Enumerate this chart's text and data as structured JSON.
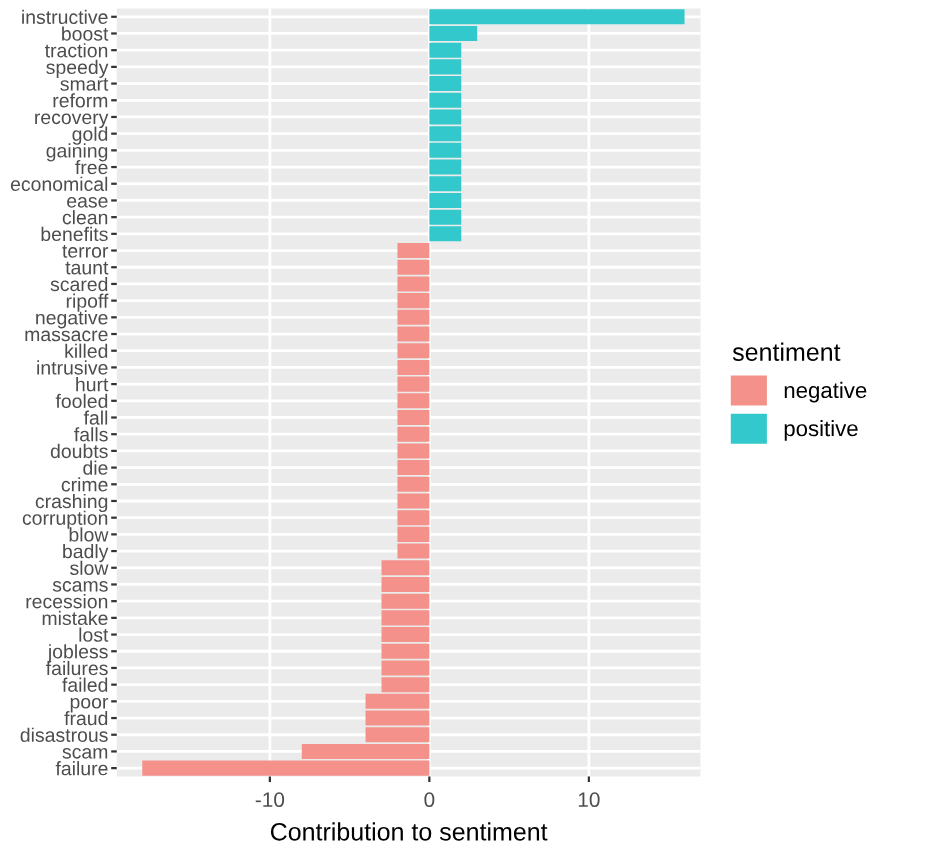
{
  "chart_data": {
    "type": "bar",
    "orientation": "horizontal",
    "xlabel": "Contribution to sentiment",
    "legend_title": "sentiment",
    "legend": "right",
    "grid": true,
    "categories": [
      "instructive",
      "boost",
      "traction",
      "speedy",
      "smart",
      "reform",
      "recovery",
      "gold",
      "gaining",
      "free",
      "economical",
      "ease",
      "clean",
      "benefits",
      "terror",
      "taunt",
      "scared",
      "ripoff",
      "negative",
      "massacre",
      "killed",
      "intrusive",
      "hurt",
      "fooled",
      "fall",
      "falls",
      "doubts",
      "die",
      "crime",
      "crashing",
      "corruption",
      "blow",
      "badly",
      "slow",
      "scams",
      "recession",
      "mistake",
      "lost",
      "jobless",
      "failures",
      "failed",
      "poor",
      "fraud",
      "disastrous",
      "scam",
      "failure"
    ],
    "series": [
      {
        "name": "negative",
        "color": "#f4918a",
        "values": [
          null,
          null,
          null,
          null,
          null,
          null,
          null,
          null,
          null,
          null,
          null,
          null,
          null,
          null,
          -2,
          -2,
          -2,
          -2,
          -2,
          -2,
          -2,
          -2,
          -2,
          -2,
          -2,
          -2,
          -2,
          -2,
          -2,
          -2,
          -2,
          -2,
          -2,
          -3,
          -3,
          -3,
          -3,
          -3,
          -3,
          -3,
          -3,
          -4,
          -4,
          -4,
          -8,
          -18
        ]
      },
      {
        "name": "positive",
        "color": "#33c9cc",
        "values": [
          16,
          3,
          2,
          2,
          2,
          2,
          2,
          2,
          2,
          2,
          2,
          2,
          2,
          2,
          null,
          null,
          null,
          null,
          null,
          null,
          null,
          null,
          null,
          null,
          null,
          null,
          null,
          null,
          null,
          null,
          null,
          null,
          null,
          null,
          null,
          null,
          null,
          null,
          null,
          null,
          null,
          null,
          null,
          null,
          null,
          null
        ]
      }
    ],
    "xlim": [
      -19.6,
      17
    ],
    "xticks": [
      -10,
      0,
      10
    ]
  }
}
